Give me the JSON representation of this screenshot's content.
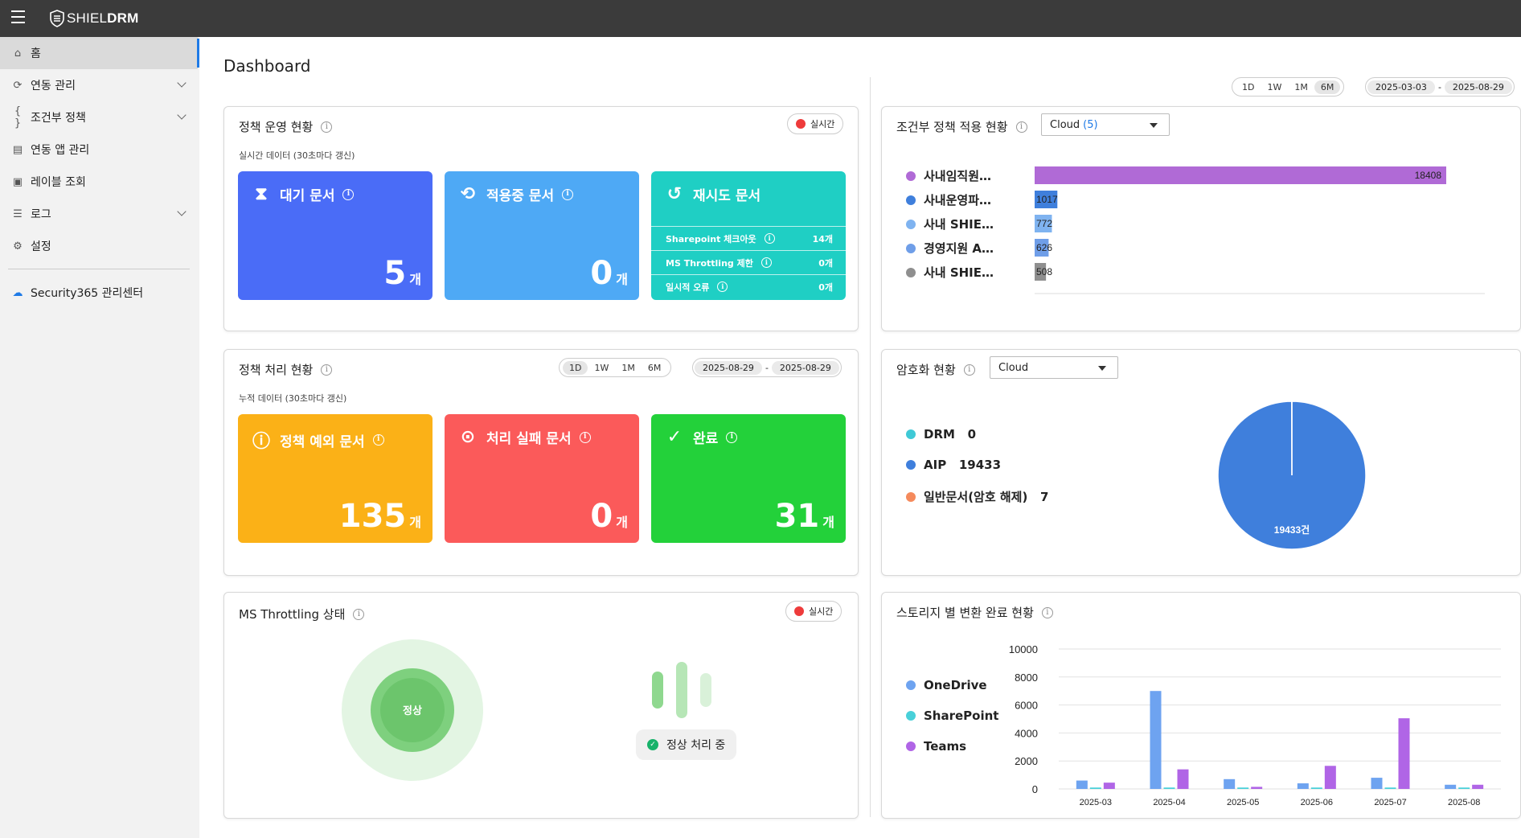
{
  "app": {
    "logo_light": "SHIEL",
    "logo_bold": "DRM"
  },
  "sidebar": {
    "items": [
      {
        "label": "홈",
        "icon": "home-icon"
      },
      {
        "label": "연동 관리",
        "icon": "sync-icon"
      },
      {
        "label": "조건부 정책",
        "icon": "braces-icon"
      },
      {
        "label": "연동 앱 관리",
        "icon": "app-icon"
      },
      {
        "label": "레이블 조회",
        "icon": "label-icon"
      },
      {
        "label": "로그",
        "icon": "clipboard-icon"
      },
      {
        "label": "설정",
        "icon": "gear-icon"
      }
    ],
    "external": {
      "label": "Security365 관리센터",
      "icon": "cloud-icon"
    }
  },
  "page": {
    "title": "Dashboard"
  },
  "global_filter": {
    "periods": [
      "1D",
      "1W",
      "1M",
      "6M"
    ],
    "selected": "6M",
    "date_from": "2025-03-03",
    "date_to": "2025-08-29",
    "date_sep": "-"
  },
  "policy_ops": {
    "title": "정책 운영 현황",
    "live": "실시간",
    "note": "실시간 데이터 (30초마다 갱신)",
    "waiting": {
      "label": "대기 문서",
      "count": "5",
      "unit": "개",
      "color": "#4a6cf7"
    },
    "applying": {
      "label": "적용중 문서",
      "count": "0",
      "unit": "개",
      "color": "#4ea9f5"
    },
    "retry": {
      "label": "재시도 문서",
      "color": "#1fcfc4",
      "rows": [
        {
          "label": "Sharepoint 체크아웃",
          "value": "14개"
        },
        {
          "label": "MS Throttling 제한",
          "value": "0개"
        },
        {
          "label": "일시적 오류",
          "value": "0개"
        }
      ]
    }
  },
  "policy_proc": {
    "title": "정책 처리 현황",
    "note": "누적 데이터 (30초마다 갱신)",
    "periods": [
      "1D",
      "1W",
      "1M",
      "6M"
    ],
    "selected": "1D",
    "date_from": "2025-08-29",
    "date_to": "2025-08-29",
    "date_sep": "-",
    "exception": {
      "label": "정책 예외 문서",
      "count": "135",
      "unit": "개",
      "color": "#fbb117"
    },
    "failed": {
      "label": "처리 실패 문서",
      "count": "0",
      "unit": "개",
      "color": "#fb5a5a"
    },
    "done": {
      "label": "완료",
      "count": "31",
      "unit": "개",
      "color": "#23d13a"
    }
  },
  "throttling": {
    "title": "MS Throttling 상태",
    "live": "실시간",
    "state": "정상",
    "status": "정상 처리 중"
  },
  "conditional": {
    "title": "조건부 정책 적용 현황",
    "select_value": "Cloud",
    "select_count": "(5)",
    "chart_data": {
      "type": "bar",
      "orientation": "horizontal",
      "categories": [
        "사내임직원…",
        "사내운영파…",
        "사내 SHIE…",
        "경영지원 A…",
        "사내 SHIE…"
      ],
      "values": [
        18408,
        1017,
        772,
        626,
        508
      ],
      "colors": [
        "#b06ad6",
        "#3f7fdc",
        "#7fb3f0",
        "#6f9ee8",
        "#8f8f8f"
      ],
      "value_labels": [
        "18408",
        "1017",
        "772",
        "626",
        "508"
      ],
      "xlim": [
        0,
        18408
      ]
    }
  },
  "encryption": {
    "title": "암호화 현황",
    "select_value": "Cloud",
    "legend": [
      {
        "name": "DRM",
        "value": "0",
        "color": "#3fc9d6"
      },
      {
        "name": "AIP",
        "value": "19433",
        "color": "#3f7fdc"
      },
      {
        "name": "일반문서(암호 해제)",
        "value": "7",
        "color": "#f58a5c"
      }
    ],
    "chart_data": {
      "type": "pie",
      "labels": [
        "DRM",
        "AIP",
        "일반문서(암호 해제)"
      ],
      "values": [
        0,
        19433,
        7
      ],
      "colors": [
        "#3fc9d6",
        "#3f7fdc",
        "#f58a5c"
      ],
      "slice_label": "19433건"
    }
  },
  "storage": {
    "title": "스토리지 별 변환 완료 현황",
    "chart_data": {
      "type": "bar",
      "categories": [
        "2025-03",
        "2025-04",
        "2025-05",
        "2025-06",
        "2025-07",
        "2025-08"
      ],
      "series": [
        {
          "name": "OneDrive",
          "color": "#6ea3f0",
          "values": [
            600,
            7000,
            700,
            400,
            800,
            300
          ]
        },
        {
          "name": "SharePoint",
          "color": "#49d0d9",
          "values": [
            100,
            100,
            100,
            100,
            100,
            100
          ]
        },
        {
          "name": "Teams",
          "color": "#b065e6",
          "values": [
            450,
            1400,
            150,
            1650,
            5050,
            300
          ]
        }
      ],
      "yticks": [
        "10000",
        "8000",
        "6000",
        "4000",
        "2000",
        "0"
      ],
      "ylim": [
        0,
        10000
      ]
    }
  }
}
